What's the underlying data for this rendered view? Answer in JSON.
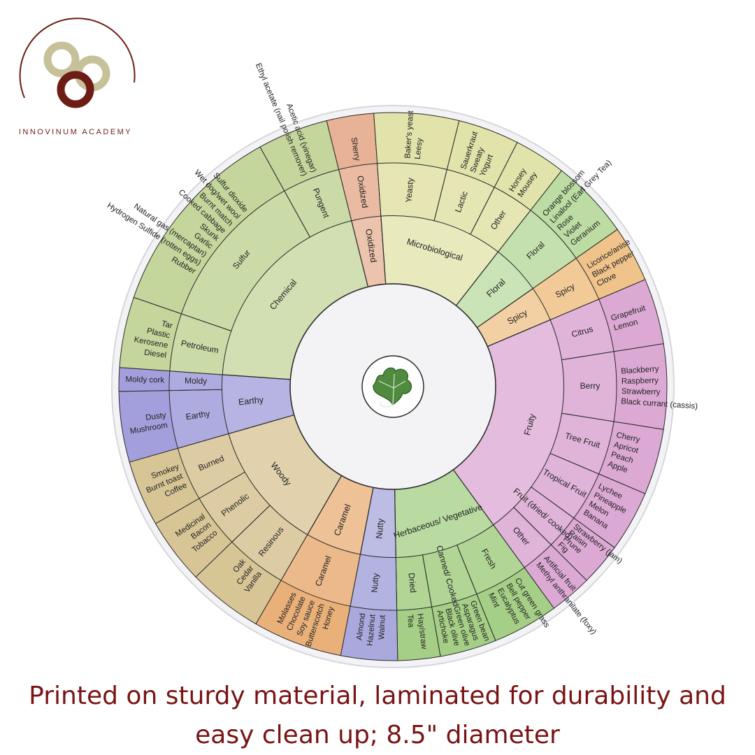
{
  "brand": {
    "name": "INNOVINUM ACADEMY",
    "colors": {
      "tan": "#c7c19a",
      "maroon": "#6e1d14"
    }
  },
  "caption": {
    "line1": "Printed on sturdy material, laminated for durability and",
    "line2": "easy clean up; 8.5\" diameter",
    "color": "#7a1414"
  },
  "center_icon": "grape-leaf-icon",
  "wheel": {
    "categories": [
      {
        "name": "Fruity",
        "color": "#dca9d4",
        "subs": [
          {
            "name": "Citrus",
            "items": [
              "Grapefruit",
              "Lemon"
            ]
          },
          {
            "name": "Berry",
            "items": [
              "Blackberry",
              "Raspberry",
              "Strawberry",
              "Black currant (cassis)"
            ]
          },
          {
            "name": "Tree Fruit",
            "items": [
              "Cherry",
              "Apricot",
              "Peach",
              "Apple"
            ]
          },
          {
            "name": "Tropical Fruit",
            "items": [
              "Lychee",
              "Pineapple",
              "Melon",
              "Banana"
            ]
          },
          {
            "name": "Fruit (dried/ cooked)",
            "items": [
              "Strawberry (jam)",
              "Raisin",
              "Prune",
              "Fig"
            ]
          },
          {
            "name": "Other",
            "items": [
              "Artificial fruit",
              "Methyl anthranilate (foxy)"
            ]
          }
        ]
      },
      {
        "name": "Herbaceous/ Vegetative",
        "color": "#a5cf86",
        "subs": [
          {
            "name": "Fresh",
            "items": [
              "Cut green grass",
              "Bell pepper",
              "Eucalyptus",
              "Mint"
            ]
          },
          {
            "name": "Canned/ Cooked",
            "items": [
              "Green bean",
              "Asparagus",
              "Green olive",
              "Black olive",
              "Artichoke"
            ]
          },
          {
            "name": "Dried",
            "items": [
              "Hay/straw",
              "Tea"
            ]
          }
        ]
      },
      {
        "name": "Nutty",
        "color": "#a9a9dd",
        "subs": [
          {
            "name": "Nutty",
            "items": [
              "Walnut",
              "Hazelnut",
              "Almond"
            ]
          }
        ]
      },
      {
        "name": "Caramel",
        "color": "#e9b07a",
        "subs": [
          {
            "name": "Caramel",
            "items": [
              "Honey",
              "Butterscotch",
              "Soy sauce",
              "Chocolate",
              "Molasses"
            ]
          }
        ]
      },
      {
        "name": "Woody",
        "color": "#d8c596",
        "subs": [
          {
            "name": "Resinous",
            "items": [
              "Vanilla",
              "Cedar",
              "Oak"
            ]
          },
          {
            "name": "Phenolic",
            "items": [
              "Tobacco",
              "Bacon",
              "Medicinal"
            ]
          },
          {
            "name": "Burned",
            "items": [
              "Coffee",
              "Burnt toast",
              "Smokey"
            ]
          }
        ]
      },
      {
        "name": "Earthy",
        "color": "#a39fdc",
        "subs": [
          {
            "name": "Earthy",
            "items": [
              "Mushroom",
              "Dusty"
            ]
          },
          {
            "name": "Moldy",
            "items": [
              "Moldy cork"
            ]
          }
        ]
      },
      {
        "name": "Chemical",
        "color": "#c4d69c",
        "subs": [
          {
            "name": "Petroleum",
            "items": [
              "Diesel",
              "Kerosene",
              "Plastic",
              "Tar"
            ]
          },
          {
            "name": "Sulfur",
            "items": [
              "Rubber",
              "Hydrogen Sulfide (rotten eggs)",
              "Natural gas (mercaptan)",
              "Garlic",
              "Skunk",
              "Cooked cabbage",
              "Burnt match",
              "Wet dog/wet wool",
              "Sulfur dioxide"
            ]
          },
          {
            "name": "Pungent",
            "items": [
              "Ethyl acetate (nail polish remover)",
              "Acetic acid (vinegar)"
            ]
          }
        ]
      },
      {
        "name": "Oxidized",
        "color": "#e7b295",
        "subs": [
          {
            "name": "Oxidized",
            "items": [
              "Sherry"
            ]
          }
        ]
      },
      {
        "name": "Microbiological",
        "color": "#e2e3aa",
        "subs": [
          {
            "name": "Yeasty",
            "items": [
              "Baker's yeast",
              "Leesy"
            ]
          },
          {
            "name": "Lactic",
            "items": [
              "Sauerkraut",
              "Sweaty",
              "Yogurt"
            ]
          },
          {
            "name": "Other",
            "items": [
              "Horsey",
              "Mousey"
            ]
          }
        ]
      },
      {
        "name": "Floral",
        "color": "#bcdca3",
        "subs": [
          {
            "name": "Floral",
            "items": [
              "Orange blossom",
              "Linalool (Earl Grey Tea)",
              "Rose",
              "Violet",
              "Geranium"
            ]
          }
        ]
      },
      {
        "name": "Spicy",
        "color": "#efc38a",
        "subs": [
          {
            "name": "Spicy",
            "items": [
              "Licorice/anise",
              "Black pepper",
              "Clove"
            ]
          }
        ]
      }
    ]
  }
}
